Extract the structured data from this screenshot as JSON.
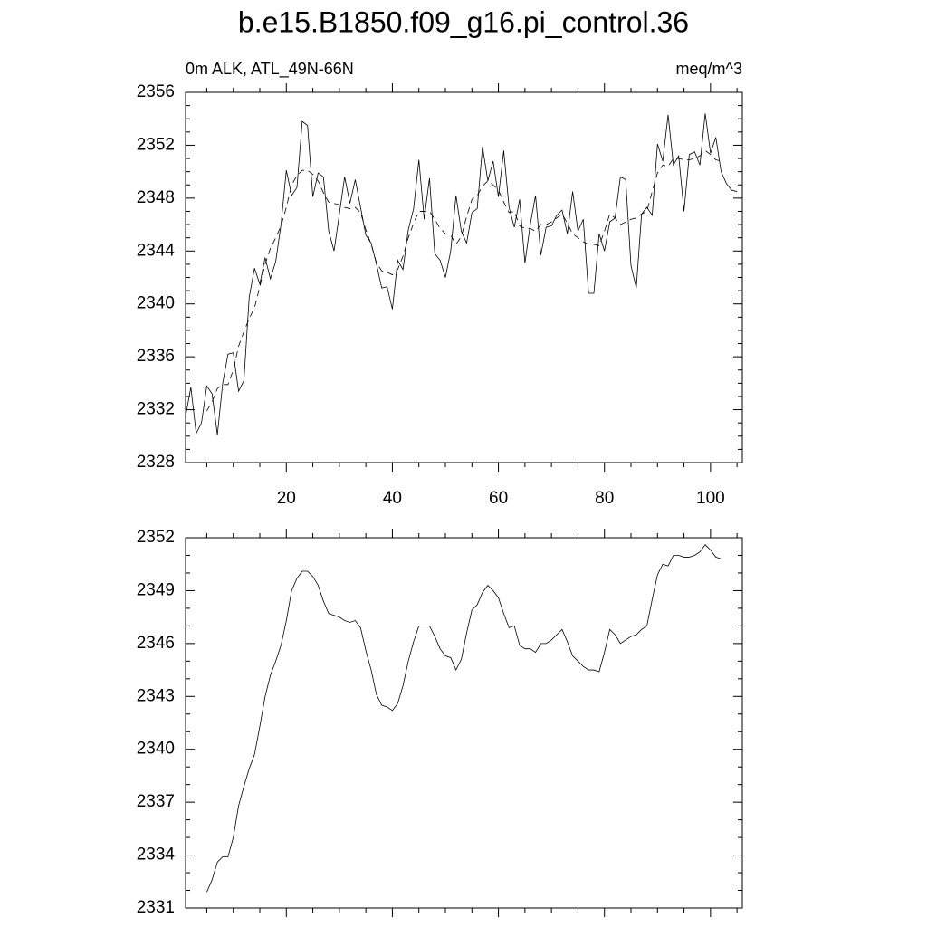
{
  "chart_data": [
    {
      "type": "line",
      "title": "b.e15.B1850.f09_g16.pi_control.36",
      "subtitle_left": "0m ALK, ATL_49N-66N",
      "subtitle_right": "meq/m^3",
      "x": [
        1,
        2,
        3,
        4,
        5,
        6,
        7,
        8,
        9,
        10,
        11,
        12,
        13,
        14,
        15,
        16,
        17,
        18,
        19,
        20,
        21,
        22,
        23,
        24,
        25,
        26,
        27,
        28,
        29,
        30,
        31,
        32,
        33,
        34,
        35,
        36,
        37,
        38,
        39,
        40,
        41,
        42,
        43,
        44,
        45,
        46,
        47,
        48,
        49,
        50,
        51,
        52,
        53,
        54,
        55,
        56,
        57,
        58,
        59,
        60,
        61,
        62,
        63,
        64,
        65,
        66,
        67,
        68,
        69,
        70,
        71,
        72,
        73,
        74,
        75,
        76,
        77,
        78,
        79,
        80,
        81,
        82,
        83,
        84,
        85,
        86,
        87,
        88,
        89,
        90,
        91,
        92,
        93,
        94,
        95,
        96,
        97,
        98,
        99,
        100,
        101,
        102,
        103,
        104,
        105
      ],
      "series": [
        {
          "color": "#000000",
          "dash": false,
          "values": [
            2331.5,
            2333.7,
            2330.2,
            2331,
            2333.8,
            2333.2,
            2330.1,
            2334,
            2336.2,
            2336.3,
            2333.4,
            2334.2,
            2340.5,
            2342.7,
            2341.5,
            2343.5,
            2341.9,
            2343.2,
            2346,
            2350.1,
            2348.2,
            2348.8,
            2353.8,
            2353.5,
            2348.1,
            2349.9,
            2349.6,
            2345.5,
            2344,
            2346.8,
            2349.6,
            2347.6,
            2349.4,
            2347.3,
            2345.2,
            2344.6,
            2343,
            2341.2,
            2341.3,
            2339.6,
            2343.3,
            2342.6,
            2345.6,
            2347.2,
            2350.9,
            2346.4,
            2349.5,
            2343.8,
            2343.3,
            2342,
            2344,
            2348.2,
            2345.5,
            2344.6,
            2346.9,
            2347.2,
            2351.9,
            2349.3,
            2350.8,
            2348.1,
            2351.6,
            2347.3,
            2345.8,
            2347.9,
            2343.1,
            2346,
            2348.2,
            2343.7,
            2345.8,
            2345.9,
            2346.7,
            2347.1,
            2345.3,
            2348.5,
            2345.5,
            2346.4,
            2340.8,
            2340.8,
            2345.3,
            2344,
            2346.2,
            2346.5,
            2349.6,
            2349.4,
            2342.9,
            2341.2,
            2346.8,
            2347.3,
            2346.7,
            2352.1,
            2350.8,
            2354.3,
            2350.5,
            2351.2,
            2347,
            2351.3,
            2351.5,
            2350.5,
            2354.4,
            2351.4,
            2352.6,
            2350,
            2349.1,
            2348.6,
            2348.5
          ]
        },
        {
          "color": "#000000",
          "dash": true,
          "values": [
            null,
            null,
            null,
            null,
            2331.9,
            2332.6,
            2333.6,
            2333.9,
            2333.9,
            2335,
            2336.8,
            2337.9,
            2338.9,
            2339.7,
            2341.3,
            2343,
            2344.2,
            2345,
            2345.9,
            2347.3,
            2349,
            2349.7,
            2350.1,
            2350.1,
            2349.8,
            2349.3,
            2348.4,
            2347.7,
            2347.6,
            2347.5,
            2347.3,
            2347.2,
            2347.3,
            2346.9,
            2345.6,
            2344.5,
            2343.1,
            2342.5,
            2342.4,
            2342.2,
            2342.6,
            2343.6,
            2345,
            2346.1,
            2347,
            2347,
            2347,
            2346.4,
            2345.7,
            2345.3,
            2345.2,
            2344.5,
            2345.1,
            2346.6,
            2347.9,
            2348.2,
            2348.9,
            2349.3,
            2349,
            2348.6,
            2347.7,
            2346.9,
            2347,
            2345.9,
            2345.7,
            2345.7,
            2345.5,
            2346,
            2346,
            2346.2,
            2346.5,
            2346.8,
            2346.1,
            2345.3,
            2345,
            2344.7,
            2344.5,
            2344.5,
            2344.4,
            2345.5,
            2346.8,
            2346.5,
            2346,
            2346.2,
            2346.4,
            2346.5,
            2346.8,
            2347,
            2348.5,
            2349.9,
            2350.5,
            2350.4,
            2351,
            2351,
            2350.9,
            2350.9,
            2351,
            2351.2,
            2351.6,
            2351.3,
            2350.9,
            2350.8,
            null,
            null,
            null
          ]
        }
      ],
      "xlim": [
        1,
        106
      ],
      "xticks": [
        20,
        40,
        60,
        80,
        100
      ],
      "ylim": [
        2328,
        2356
      ],
      "yticks": [
        2328,
        2332,
        2336,
        2340,
        2344,
        2348,
        2352,
        2356
      ],
      "xtick_labels": true
    },
    {
      "type": "line",
      "x": [
        1,
        2,
        3,
        4,
        5,
        6,
        7,
        8,
        9,
        10,
        11,
        12,
        13,
        14,
        15,
        16,
        17,
        18,
        19,
        20,
        21,
        22,
        23,
        24,
        25,
        26,
        27,
        28,
        29,
        30,
        31,
        32,
        33,
        34,
        35,
        36,
        37,
        38,
        39,
        40,
        41,
        42,
        43,
        44,
        45,
        46,
        47,
        48,
        49,
        50,
        51,
        52,
        53,
        54,
        55,
        56,
        57,
        58,
        59,
        60,
        61,
        62,
        63,
        64,
        65,
        66,
        67,
        68,
        69,
        70,
        71,
        72,
        73,
        74,
        75,
        76,
        77,
        78,
        79,
        80,
        81,
        82,
        83,
        84,
        85,
        86,
        87,
        88,
        89,
        90,
        91,
        92,
        93,
        94,
        95,
        96,
        97,
        98,
        99,
        100,
        101,
        102,
        103,
        104,
        105
      ],
      "series": [
        {
          "color": "#000000",
          "dash": false,
          "values": [
            null,
            null,
            null,
            null,
            2331.9,
            2332.6,
            2333.6,
            2333.9,
            2333.9,
            2335,
            2336.8,
            2337.9,
            2338.9,
            2339.7,
            2341.3,
            2343,
            2344.2,
            2345,
            2345.9,
            2347.3,
            2349,
            2349.7,
            2350.1,
            2350.1,
            2349.8,
            2349.3,
            2348.4,
            2347.7,
            2347.6,
            2347.5,
            2347.3,
            2347.2,
            2347.3,
            2346.9,
            2345.6,
            2344.5,
            2343.1,
            2342.5,
            2342.4,
            2342.2,
            2342.6,
            2343.6,
            2345,
            2346.1,
            2347,
            2347,
            2347,
            2346.4,
            2345.7,
            2345.3,
            2345.2,
            2344.5,
            2345.1,
            2346.6,
            2347.9,
            2348.2,
            2348.9,
            2349.3,
            2349,
            2348.6,
            2347.7,
            2346.9,
            2347,
            2345.9,
            2345.7,
            2345.7,
            2345.5,
            2346,
            2346,
            2346.2,
            2346.5,
            2346.8,
            2346.1,
            2345.3,
            2345,
            2344.7,
            2344.5,
            2344.5,
            2344.4,
            2345.5,
            2346.8,
            2346.5,
            2346,
            2346.2,
            2346.4,
            2346.5,
            2346.8,
            2347,
            2348.5,
            2349.9,
            2350.5,
            2350.4,
            2351,
            2351,
            2350.9,
            2350.9,
            2351,
            2351.2,
            2351.6,
            2351.3,
            2350.9,
            2350.8,
            null,
            null,
            null
          ]
        }
      ],
      "xlim": [
        1,
        106
      ],
      "xticks": [
        20,
        40,
        60,
        80,
        100
      ],
      "ylim": [
        2331,
        2352
      ],
      "yticks": [
        2331,
        2334,
        2337,
        2340,
        2343,
        2346,
        2349,
        2352
      ],
      "xtick_labels": false
    }
  ]
}
